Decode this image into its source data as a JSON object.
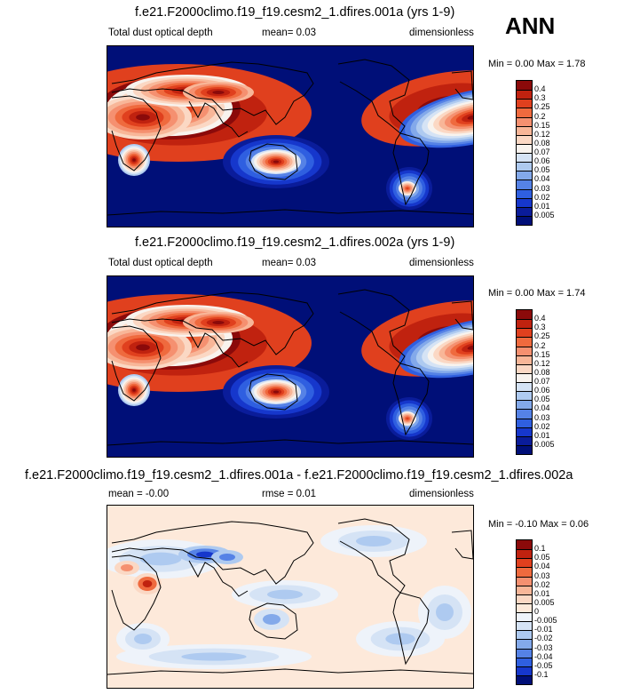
{
  "season": "ANN",
  "panels": [
    {
      "title": "f.e21.F2000climo.f19_f19.cesm2_1.dfires.001a (yrs 1-9)",
      "left_label": "Total dust optical depth",
      "center_label": "mean=  0.03",
      "right_label": "dimensionless",
      "minmax": "Min =  0.00 Max =  1.78",
      "levels": [
        "0.4",
        "0.3",
        "0.25",
        "0.2",
        "0.15",
        "0.12",
        "0.08",
        "0.07",
        "0.06",
        "0.05",
        "0.04",
        "0.03",
        "0.02",
        "0.01",
        "0.005"
      ],
      "colors": [
        "#8b0a0a",
        "#c0220f",
        "#e0401e",
        "#ef6a3e",
        "#f59070",
        "#f8b698",
        "#fbd8c4",
        "#f8f3ee",
        "#d5e3f5",
        "#aecaf0",
        "#83a9ea",
        "#5582e6",
        "#2f5fe0",
        "#1637cc",
        "#0a1c9a",
        "#000f78"
      ]
    },
    {
      "title": "f.e21.F2000climo.f19_f19.cesm2_1.dfires.002a (yrs 1-9)",
      "left_label": "Total dust optical depth",
      "center_label": "mean=  0.03",
      "right_label": "dimensionless",
      "minmax": "Min =  0.00 Max =  1.74",
      "levels": [
        "0.4",
        "0.3",
        "0.25",
        "0.2",
        "0.15",
        "0.12",
        "0.08",
        "0.07",
        "0.06",
        "0.05",
        "0.04",
        "0.03",
        "0.02",
        "0.01",
        "0.005"
      ],
      "colors": [
        "#8b0a0a",
        "#c0220f",
        "#e0401e",
        "#ef6a3e",
        "#f59070",
        "#f8b698",
        "#fbd8c4",
        "#f8f3ee",
        "#d5e3f5",
        "#aecaf0",
        "#83a9ea",
        "#5582e6",
        "#2f5fe0",
        "#1637cc",
        "#0a1c9a",
        "#000f78"
      ]
    },
    {
      "title": "f.e21.F2000climo.f19_f19.cesm2_1.dfires.001a - f.e21.F2000climo.f19_f19.cesm2_1.dfires.002a",
      "left_label": "mean = -0.00",
      "center_label": "rmse =  0.01",
      "right_label": "dimensionless",
      "minmax": "Min = -0.10 Max =  0.06",
      "levels": [
        "0.1",
        "0.05",
        "0.04",
        "0.03",
        "0.02",
        "0.01",
        "0.005",
        "0",
        "-0.005",
        "-0.01",
        "-0.02",
        "-0.03",
        "-0.04",
        "-0.05",
        "-0.1"
      ],
      "colors": [
        "#8b0a0a",
        "#c0220f",
        "#e0401e",
        "#ef6a3e",
        "#f59070",
        "#f8b698",
        "#fbd8c4",
        "#fde9da",
        "#eef3fa",
        "#d5e3f5",
        "#aecaf0",
        "#83a9ea",
        "#5582e6",
        "#2f5fe0",
        "#1637cc",
        "#000f78"
      ]
    }
  ],
  "chart_data": [
    {
      "type": "heatmap",
      "title": "f.e21.F2000climo.f19_f19.cesm2_1.dfires.001a (yrs 1-9)",
      "variable": "Total dust optical depth",
      "units": "dimensionless",
      "mean": 0.03,
      "min": 0.0,
      "max": 1.78,
      "contour_levels": [
        0.005,
        0.01,
        0.02,
        0.03,
        0.04,
        0.05,
        0.06,
        0.07,
        0.08,
        0.12,
        0.15,
        0.2,
        0.25,
        0.3,
        0.4
      ],
      "season": "ANN"
    },
    {
      "type": "heatmap",
      "title": "f.e21.F2000climo.f19_f19.cesm2_1.dfires.002a (yrs 1-9)",
      "variable": "Total dust optical depth",
      "units": "dimensionless",
      "mean": 0.03,
      "min": 0.0,
      "max": 1.74,
      "contour_levels": [
        0.005,
        0.01,
        0.02,
        0.03,
        0.04,
        0.05,
        0.06,
        0.07,
        0.08,
        0.12,
        0.15,
        0.2,
        0.25,
        0.3,
        0.4
      ],
      "season": "ANN"
    },
    {
      "type": "heatmap",
      "title": "f.e21.F2000climo.f19_f19.cesm2_1.dfires.001a - f.e21.F2000climo.f19_f19.cesm2_1.dfires.002a",
      "units": "dimensionless",
      "mean": -0.0,
      "rmse": 0.01,
      "min": -0.1,
      "max": 0.06,
      "contour_levels": [
        -0.1,
        -0.05,
        -0.04,
        -0.03,
        -0.02,
        -0.01,
        -0.005,
        0,
        0.005,
        0.01,
        0.02,
        0.03,
        0.04,
        0.05,
        0.1
      ],
      "season": "ANN"
    }
  ]
}
